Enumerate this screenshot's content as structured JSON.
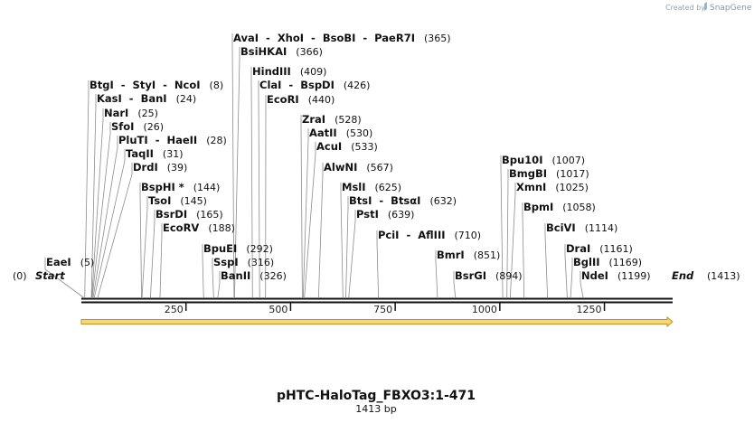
{
  "credit": {
    "created_by": "Created by",
    "brand": "SnapGene"
  },
  "title": "pHTC-HaloTag_FBXO3:1-471",
  "length_label": "1413 bp",
  "total_bp": 1413,
  "start": {
    "label": "Start",
    "pos_text": "(0)"
  },
  "end": {
    "label": "End",
    "pos_text": "(1413)"
  },
  "ticks": [
    {
      "value": 250,
      "label": "250"
    },
    {
      "value": 500,
      "label": "500"
    },
    {
      "value": 750,
      "label": "750"
    },
    {
      "value": 1000,
      "label": "1000"
    },
    {
      "value": 1250,
      "label": "1250"
    }
  ],
  "feature": {
    "name": "orf-arrow",
    "start": 0,
    "end": 1413,
    "fill": "#f6d77e",
    "stroke": "#c8901a"
  },
  "sites": [
    {
      "label": "AvaI  -  XhoI  -  BsoBI  -  PaeR7I",
      "pos_text": "(365)",
      "pos": 365
    },
    {
      "label": "BsiHKAI",
      "pos_text": "(366)",
      "pos": 366
    },
    {
      "label": "HindIII",
      "pos_text": "(409)",
      "pos": 409
    },
    {
      "label": "ClaI  -  BspDI",
      "pos_text": "(426)",
      "pos": 426
    },
    {
      "label": "EcoRI",
      "pos_text": "(440)",
      "pos": 440
    },
    {
      "label": "BtgI  -  StyI  -  NcoI",
      "pos_text": "(8)",
      "pos": 8
    },
    {
      "label": "KasI  -  BanI",
      "pos_text": "(24)",
      "pos": 24
    },
    {
      "label": "NarI",
      "pos_text": "(25)",
      "pos": 25
    },
    {
      "label": "SfoI",
      "pos_text": "(26)",
      "pos": 26
    },
    {
      "label": "PluTI  -  HaeII",
      "pos_text": "(28)",
      "pos": 28
    },
    {
      "label": "TaqII",
      "pos_text": "(31)",
      "pos": 31
    },
    {
      "label": "DrdI",
      "pos_text": "(39)",
      "pos": 39
    },
    {
      "label": "BspHI *",
      "pos_text": "(144)",
      "pos": 144
    },
    {
      "label": "TsoI",
      "pos_text": "(145)",
      "pos": 145
    },
    {
      "label": "BsrDI",
      "pos_text": "(165)",
      "pos": 165
    },
    {
      "label": "EcoRV",
      "pos_text": "(188)",
      "pos": 188
    },
    {
      "label": "BpuEI",
      "pos_text": "(292)",
      "pos": 292
    },
    {
      "label": "SspI",
      "pos_text": "(316)",
      "pos": 316
    },
    {
      "label": "BanII",
      "pos_text": "(326)",
      "pos": 326
    },
    {
      "label": "ZraI",
      "pos_text": "(528)",
      "pos": 528
    },
    {
      "label": "AatII",
      "pos_text": "(530)",
      "pos": 530
    },
    {
      "label": "AcuI",
      "pos_text": "(533)",
      "pos": 533
    },
    {
      "label": "AlwNI",
      "pos_text": "(567)",
      "pos": 567
    },
    {
      "label": "MslI",
      "pos_text": "(625)",
      "pos": 625
    },
    {
      "label": "BtsI  -  BtsαI",
      "pos_text": "(632)",
      "pos": 632
    },
    {
      "label": "PstI",
      "pos_text": "(639)",
      "pos": 639
    },
    {
      "label": "PciI  -  AflIII",
      "pos_text": "(710)",
      "pos": 710
    },
    {
      "label": "BmrI",
      "pos_text": "(851)",
      "pos": 851
    },
    {
      "label": "BsrGI",
      "pos_text": "(894)",
      "pos": 894
    },
    {
      "label": "Bpu10I",
      "pos_text": "(1007)",
      "pos": 1007
    },
    {
      "label": "BmgBI",
      "pos_text": "(1017)",
      "pos": 1017
    },
    {
      "label": "XmnI",
      "pos_text": "(1025)",
      "pos": 1025
    },
    {
      "label": "BpmI",
      "pos_text": "(1058)",
      "pos": 1058
    },
    {
      "label": "BciVI",
      "pos_text": "(1114)",
      "pos": 1114
    },
    {
      "label": "DraI",
      "pos_text": "(1161)",
      "pos": 1161
    },
    {
      "label": "BglII",
      "pos_text": "(1169)",
      "pos": 1169
    },
    {
      "label": "NdeI",
      "pos_text": "(1199)",
      "pos": 1199
    },
    {
      "label": "EaeI",
      "pos_text": "(5)",
      "pos": 5
    }
  ]
}
